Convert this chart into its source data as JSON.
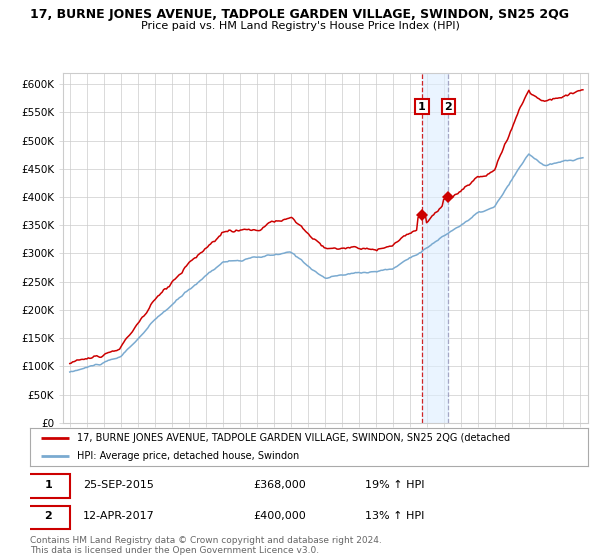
{
  "title": "17, BURNE JONES AVENUE, TADPOLE GARDEN VILLAGE, SWINDON, SN25 2QG",
  "subtitle": "Price paid vs. HM Land Registry's House Price Index (HPI)",
  "ylim": [
    0,
    620000
  ],
  "yticks": [
    0,
    50000,
    100000,
    150000,
    200000,
    250000,
    300000,
    350000,
    400000,
    450000,
    500000,
    550000,
    600000
  ],
  "ytick_labels": [
    "£0",
    "£50K",
    "£100K",
    "£150K",
    "£200K",
    "£250K",
    "£300K",
    "£350K",
    "£400K",
    "£450K",
    "£500K",
    "£550K",
    "£600K"
  ],
  "sale1_date_num": 2015.73,
  "sale1_price": 368000,
  "sale2_date_num": 2017.27,
  "sale2_price": 400000,
  "legend_line1": "17, BURNE JONES AVENUE, TADPOLE GARDEN VILLAGE, SWINDON, SN25 2QG (detached",
  "legend_line2": "HPI: Average price, detached house, Swindon",
  "table_row1_date": "25-SEP-2015",
  "table_row1_price": "£368,000",
  "table_row1_hpi": "19% ↑ HPI",
  "table_row2_date": "12-APR-2017",
  "table_row2_price": "£400,000",
  "table_row2_hpi": "13% ↑ HPI",
  "footer": "Contains HM Land Registry data © Crown copyright and database right 2024.\nThis data is licensed under the Open Government Licence v3.0.",
  "red_color": "#cc0000",
  "blue_color": "#7aaad0",
  "background_color": "#ffffff",
  "grid_color": "#cccccc",
  "shade_color": "#ddeeff"
}
